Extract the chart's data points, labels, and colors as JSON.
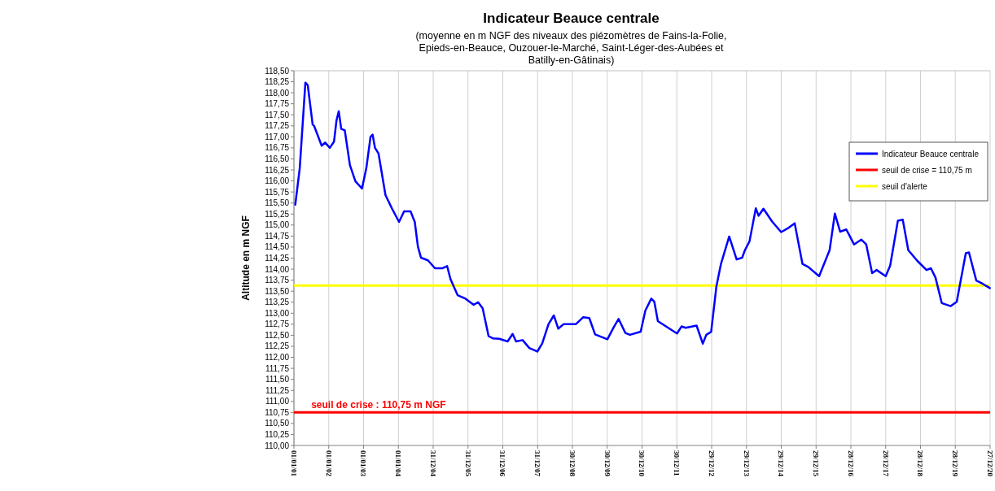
{
  "chart_data": {
    "type": "line",
    "title": "Indicateur Beauce centrale",
    "subtitle": "(moyenne en m NGF des niveaux des piézomètres de Fains-la-Folie, Epieds-en-Beauce, Ouzouer-le-Marché, Saint-Léger-des-Aubées et Batilly-en-Gâtinais)",
    "ylabel": "Altitude en m NGF",
    "annotations": [
      {
        "text": "seuil de crise : 110,75 m NGF",
        "x": "2001-07-01",
        "y": 110.75
      }
    ],
    "series": [
      {
        "name": "Indicateur Beauce centrale",
        "color": "#0000ff",
        "x": [
          "2001-01-15",
          "2001-03-03",
          "2001-05-01",
          "2001-05-26",
          "2001-07-16",
          "2001-07-31",
          "2001-10-19",
          "2001-11-24",
          "2002-01-12",
          "2002-02-25",
          "2002-03-23",
          "2002-04-16",
          "2002-05-12",
          "2002-06-18",
          "2002-08-11",
          "2002-10-08",
          "2002-12-16",
          "2003-01-30",
          "2003-03-15",
          "2003-04-06",
          "2003-05-01",
          "2003-06-07",
          "2003-08-19",
          "2003-10-27",
          "2004-01-08",
          "2004-03-01",
          "2004-05-08",
          "2004-06-21",
          "2004-07-24",
          "2004-08-25",
          "2004-11-06",
          "2005-01-19",
          "2005-04-09",
          "2005-05-26",
          "2005-07-01",
          "2005-09-13",
          "2005-12-05",
          "2006-03-01",
          "2006-04-16",
          "2006-06-03",
          "2006-08-04",
          "2006-09-17",
          "2006-11-24",
          "2007-02-20",
          "2007-04-13",
          "2007-05-19",
          "2007-07-27",
          "2007-10-05",
          "2007-12-28",
          "2008-02-17",
          "2008-04-23",
          "2008-06-18",
          "2008-08-04",
          "2008-09-27",
          "2009-02-03",
          "2009-04-23",
          "2009-06-25",
          "2009-08-25",
          "2010-01-01",
          "2010-03-08",
          "2010-04-28",
          "2010-07-09",
          "2010-08-25",
          "2010-12-16",
          "2011-02-03",
          "2011-04-06",
          "2011-05-08",
          "2011-06-14",
          "2011-08-25",
          "2012-01-01",
          "2012-02-17",
          "2012-04-01",
          "2012-07-24",
          "2012-09-27",
          "2012-11-03",
          "2012-12-24",
          "2013-02-17",
          "2013-04-06",
          "2013-07-01",
          "2013-09-17",
          "2013-11-14",
          "2013-12-13",
          "2014-01-30",
          "2014-04-06",
          "2014-05-05",
          "2014-06-25",
          "2014-09-24",
          "2014-12-28",
          "2015-03-18",
          "2015-05-19",
          "2015-08-08",
          "2015-10-08",
          "2016-01-30",
          "2016-05-19",
          "2016-07-13",
          "2016-09-06",
          "2016-11-10",
          "2017-01-30",
          "2017-04-16",
          "2017-06-07",
          "2017-08-08",
          "2017-09-24",
          "2017-12-28",
          "2018-02-13",
          "2018-05-05",
          "2018-06-25",
          "2018-08-22",
          "2018-11-24",
          "2019-03-01",
          "2019-04-16",
          "2019-06-03",
          "2019-08-08",
          "2019-11-10",
          "2020-01-12",
          "2020-04-16",
          "2020-05-19",
          "2020-08-04",
          "2020-10-08",
          "2020-12-24"
        ],
        "values": [
          115.46,
          116.29,
          118.23,
          118.17,
          117.28,
          117.25,
          116.8,
          116.87,
          116.75,
          116.89,
          117.37,
          117.58,
          117.18,
          117.15,
          116.36,
          115.99,
          115.83,
          116.29,
          117.0,
          117.05,
          116.75,
          116.62,
          115.68,
          115.37,
          115.07,
          115.31,
          115.31,
          115.07,
          114.51,
          114.26,
          114.2,
          114.02,
          114.02,
          114.07,
          113.77,
          113.41,
          113.33,
          113.19,
          113.25,
          113.11,
          112.48,
          112.43,
          112.42,
          112.36,
          112.53,
          112.36,
          112.39,
          112.21,
          112.13,
          112.31,
          112.75,
          112.95,
          112.65,
          112.75,
          112.75,
          112.91,
          112.89,
          112.52,
          112.41,
          112.68,
          112.87,
          112.55,
          112.51,
          112.58,
          113.06,
          113.33,
          113.26,
          112.82,
          112.72,
          112.54,
          112.7,
          112.67,
          112.72,
          112.31,
          112.51,
          112.58,
          113.61,
          114.12,
          114.74,
          114.22,
          114.26,
          114.43,
          114.63,
          115.38,
          115.21,
          115.37,
          115.08,
          114.84,
          114.94,
          115.04,
          114.12,
          114.05,
          113.84,
          114.43,
          115.26,
          114.85,
          114.9,
          114.56,
          114.67,
          114.56,
          113.91,
          113.98,
          113.84,
          114.08,
          115.1,
          115.12,
          114.43,
          114.19,
          113.98,
          114.02,
          113.81,
          113.23,
          113.16,
          113.26,
          114.36,
          114.38,
          113.74,
          113.67,
          113.57
        ]
      }
    ],
    "ref_lines": [
      {
        "axis": "y",
        "value": 110.75,
        "label": "seuil de crise = 110,75 m",
        "color": "#ff0000"
      },
      {
        "axis": "y",
        "value": 113.63,
        "label": "seuil d'alerte",
        "color": "#ffff00"
      }
    ],
    "xlim": [
      "2001-01-01",
      "2020-12-27"
    ],
    "xticks": [
      {
        "value": "2001-01-01",
        "label": "01/01/01"
      },
      {
        "value": "2002-01-01",
        "label": "01/01/02"
      },
      {
        "value": "2003-01-01",
        "label": "01/01/03"
      },
      {
        "value": "2004-01-01",
        "label": "01/01/04"
      },
      {
        "value": "2004-12-31",
        "label": "31/12/04"
      },
      {
        "value": "2005-12-31",
        "label": "31/12/05"
      },
      {
        "value": "2006-12-31",
        "label": "31/12/06"
      },
      {
        "value": "2007-12-31",
        "label": "31/12/07"
      },
      {
        "value": "2008-12-30",
        "label": "30/12/08"
      },
      {
        "value": "2009-12-30",
        "label": "30/12/09"
      },
      {
        "value": "2010-12-30",
        "label": "30/12/10"
      },
      {
        "value": "2011-12-30",
        "label": "30/12/11"
      },
      {
        "value": "2012-12-29",
        "label": "29/12/12"
      },
      {
        "value": "2013-12-29",
        "label": "29/12/13"
      },
      {
        "value": "2014-12-29",
        "label": "29/12/14"
      },
      {
        "value": "2015-12-29",
        "label": "29/12/15"
      },
      {
        "value": "2016-12-28",
        "label": "28/12/16"
      },
      {
        "value": "2017-12-28",
        "label": "28/12/17"
      },
      {
        "value": "2018-12-28",
        "label": "28/12/18"
      },
      {
        "value": "2019-12-28",
        "label": "28/12/19"
      },
      {
        "value": "2020-12-27",
        "label": "27/12/20"
      }
    ],
    "ylim": [
      110,
      118.5
    ],
    "yticks": [
      {
        "value": 110,
        "label": "110,00"
      },
      {
        "value": 110.25,
        "label": "110,25"
      },
      {
        "value": 110.5,
        "label": "110,50"
      },
      {
        "value": 110.75,
        "label": "110,75"
      },
      {
        "value": 111,
        "label": "111,00"
      },
      {
        "value": 111.25,
        "label": "111,25"
      },
      {
        "value": 111.5,
        "label": "111,50"
      },
      {
        "value": 111.75,
        "label": "111,75"
      },
      {
        "value": 112,
        "label": "112,00"
      },
      {
        "value": 112.25,
        "label": "112,25"
      },
      {
        "value": 112.5,
        "label": "112,50"
      },
      {
        "value": 112.75,
        "label": "112,75"
      },
      {
        "value": 113,
        "label": "113,00"
      },
      {
        "value": 113.25,
        "label": "113,25"
      },
      {
        "value": 113.5,
        "label": "113,50"
      },
      {
        "value": 113.75,
        "label": "113,75"
      },
      {
        "value": 114,
        "label": "114,00"
      },
      {
        "value": 114.25,
        "label": "114,25"
      },
      {
        "value": 114.5,
        "label": "114,50"
      },
      {
        "value": 114.75,
        "label": "114,75"
      },
      {
        "value": 115,
        "label": "115,00"
      },
      {
        "value": 115.25,
        "label": "115,25"
      },
      {
        "value": 115.5,
        "label": "115,50"
      },
      {
        "value": 115.75,
        "label": "115,75"
      },
      {
        "value": 116,
        "label": "116,00"
      },
      {
        "value": 116.25,
        "label": "116,25"
      },
      {
        "value": 116.5,
        "label": "116,50"
      },
      {
        "value": 116.75,
        "label": "116,75"
      },
      {
        "value": 117,
        "label": "117,00"
      },
      {
        "value": 117.25,
        "label": "117,25"
      },
      {
        "value": 117.5,
        "label": "117,50"
      },
      {
        "value": 117.75,
        "label": "117,75"
      },
      {
        "value": 118,
        "label": "118,00"
      },
      {
        "value": 118.25,
        "label": "118,25"
      },
      {
        "value": 118.5,
        "label": "118,50"
      }
    ],
    "grid": "x",
    "legend": "top right",
    "line_style": "solid",
    "marker": "none"
  }
}
